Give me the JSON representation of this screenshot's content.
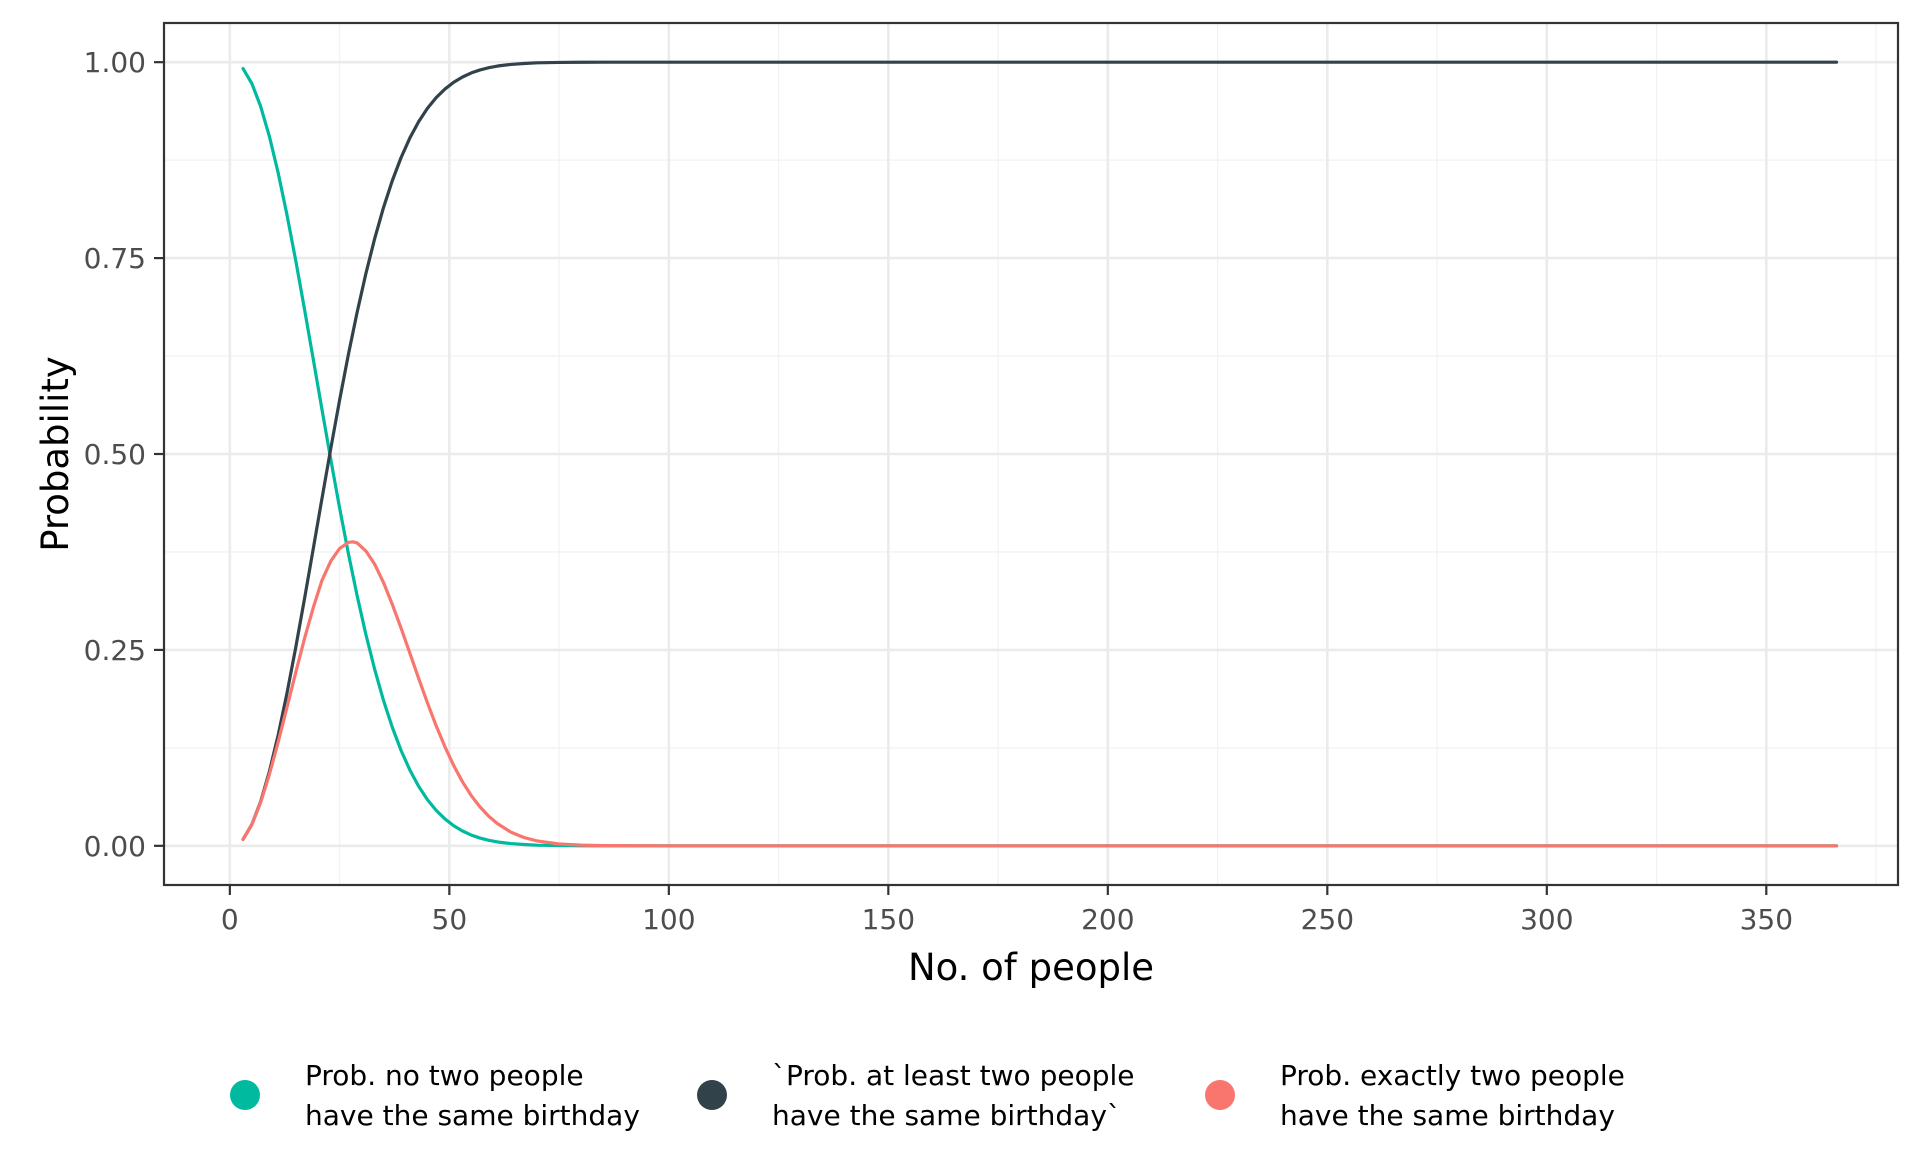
{
  "chart_data": {
    "type": "line",
    "title": "",
    "xlabel": "No. of people",
    "ylabel": "Probability",
    "xlim": [
      -15,
      380
    ],
    "ylim": [
      -0.05,
      1.05
    ],
    "x_ticks": [
      0,
      50,
      100,
      150,
      200,
      250,
      300,
      350
    ],
    "x_tick_labels": [
      "0",
      "50",
      "100",
      "150",
      "200",
      "250",
      "300",
      "350"
    ],
    "y_ticks": [
      0,
      0.25,
      0.5,
      0.75,
      1
    ],
    "y_tick_labels": [
      "0.00",
      "0.25",
      "0.50",
      "0.75",
      "1.00"
    ],
    "grid": true,
    "legend_position": "bottom",
    "series": [
      {
        "name": "Prob. no two people\nhave the same birthday",
        "color": "#00BA9F",
        "x": [
          3,
          5,
          7,
          9,
          11,
          13,
          15,
          17,
          19,
          21,
          23,
          25,
          27,
          29,
          31,
          33,
          35,
          37,
          39,
          41,
          43,
          45,
          47,
          49,
          51,
          53,
          55,
          57,
          59,
          61,
          64,
          67,
          70,
          75,
          80,
          85,
          90,
          100,
          150,
          200,
          250,
          300,
          366
        ],
        "y": [
          0.9918,
          0.9729,
          0.9438,
          0.9054,
          0.8589,
          0.8056,
          0.7471,
          0.685,
          0.6209,
          0.5563,
          0.4927,
          0.4313,
          0.3731,
          0.319,
          0.2695,
          0.225,
          0.1856,
          0.1513,
          0.1218,
          0.0968,
          0.076,
          0.059,
          0.0452,
          0.0343,
          0.0256,
          0.0189,
          0.0137,
          0.0099,
          0.007,
          0.0049,
          0.0029,
          0.0017,
          0.0008,
          0.0003,
          0.0001,
          0.0,
          0.0,
          0.0,
          0.0,
          0.0,
          0.0,
          0.0,
          0.0
        ]
      },
      {
        "name": "`Prob. at least two people\nhave the same birthday`",
        "color": "#32424A",
        "x": [
          3,
          5,
          7,
          9,
          11,
          13,
          15,
          17,
          19,
          21,
          23,
          25,
          27,
          29,
          31,
          33,
          35,
          37,
          39,
          41,
          43,
          45,
          47,
          49,
          51,
          53,
          55,
          57,
          59,
          61,
          64,
          67,
          70,
          75,
          80,
          85,
          90,
          100,
          150,
          200,
          250,
          300,
          366
        ],
        "y": [
          0.0082,
          0.0271,
          0.0562,
          0.0946,
          0.1411,
          0.1944,
          0.2529,
          0.315,
          0.3791,
          0.4437,
          0.5073,
          0.5687,
          0.6269,
          0.681,
          0.7305,
          0.775,
          0.8144,
          0.8487,
          0.8782,
          0.9032,
          0.924,
          0.941,
          0.9548,
          0.9657,
          0.9744,
          0.9811,
          0.9863,
          0.9901,
          0.993,
          0.9951,
          0.9971,
          0.9983,
          0.9992,
          0.9997,
          0.9999,
          1.0,
          1.0,
          1.0,
          1.0,
          1.0,
          1.0,
          1.0,
          1.0
        ]
      },
      {
        "name": "Prob. exactly two people\nhave the same birthday",
        "color": "#F8766D",
        "x": [
          3,
          5,
          7,
          9,
          11,
          13,
          15,
          17,
          19,
          21,
          23,
          25,
          27,
          28,
          29,
          31,
          33,
          35,
          37,
          39,
          41,
          43,
          45,
          47,
          49,
          51,
          53,
          55,
          57,
          59,
          61,
          64,
          67,
          70,
          75,
          80,
          85,
          90,
          100,
          150,
          200,
          250,
          300,
          366
        ],
        "y": [
          0.0082,
          0.0268,
          0.0551,
          0.091,
          0.1322,
          0.1764,
          0.221,
          0.2643,
          0.3039,
          0.339,
          0.3634,
          0.3794,
          0.3871,
          0.3879,
          0.3865,
          0.3762,
          0.3593,
          0.336,
          0.3082,
          0.2779,
          0.246,
          0.2138,
          0.1826,
          0.1532,
          0.1264,
          0.1024,
          0.0816,
          0.064,
          0.0495,
          0.0376,
          0.0282,
          0.0175,
          0.0106,
          0.0062,
          0.0024,
          0.0009,
          0.0003,
          0.0001,
          0.0,
          0.0,
          0.0,
          0.0,
          0.0,
          0.0
        ]
      }
    ]
  }
}
